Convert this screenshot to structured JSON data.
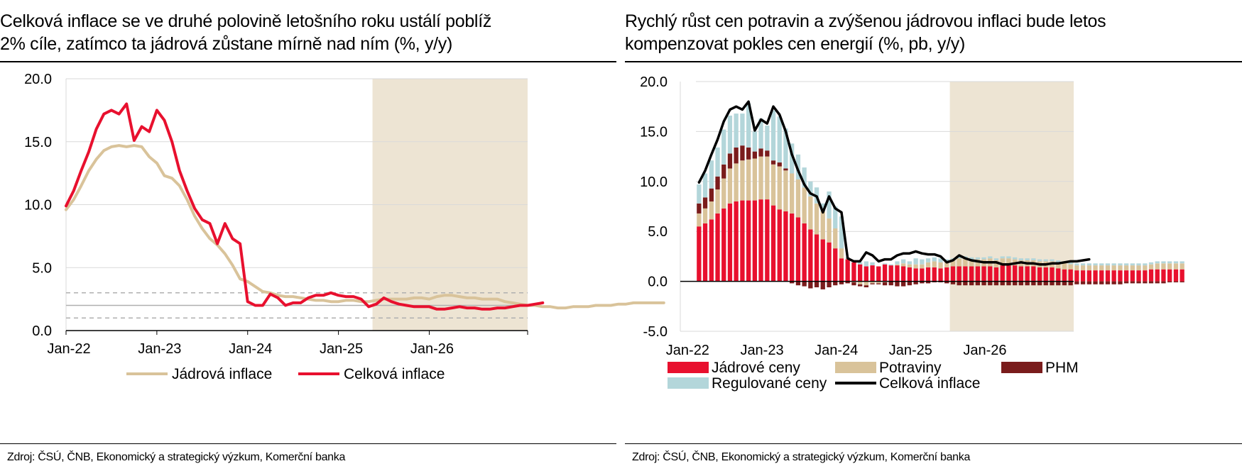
{
  "charts": [
    {
      "title_line1": "Celková inflace se ve druhé polovině letošního roku ustálí poblíž",
      "title_line2": "2% cíle, zatímco ta jádrová zůstane mírně nad ním (%, y/y)",
      "source": "Zdroj: ČSÚ, ČNB, Ekonomický a strategický výzkum, Komerční banka"
    },
    {
      "title_line1": "Rychlý růst cen potravin a zvýšenou jádrovou inflaci bude letos",
      "title_line2": "kompenzovat pokles cen energií (%, pb, y/y)",
      "source": "Zdroj: ČSÚ, ČNB, Ekonomický a strategický výzkum, Komerční banka"
    }
  ],
  "colors": {
    "core": "#d9c39a",
    "headline": "#e8102e",
    "core_prices": "#e8102e",
    "food": "#d9c39a",
    "fuels": "#7a1c1c",
    "regulated": "#b3d6da",
    "total_line": "#000000",
    "forecast_shade": "#ede4d3",
    "grid": "#d9d9d9",
    "band": "#b0b0b0"
  },
  "chart_data": [
    {
      "type": "line",
      "x_start": "2022-01",
      "x_ticks": [
        "Jan-22",
        "Jan-23",
        "Jan-24",
        "Jan-25",
        "Jan-26"
      ],
      "ylim": [
        0,
        20
      ],
      "y_ticks": [
        "0.0",
        "5.0",
        "10.0",
        "15.0",
        "20.0"
      ],
      "target_band": [
        1,
        2,
        3
      ],
      "forecast_from": "2025-06",
      "series": [
        {
          "name": "Jádrová inflace",
          "color_key": "core",
          "values": [
            9.6,
            10.4,
            11.5,
            12.7,
            13.6,
            14.3,
            14.6,
            14.7,
            14.6,
            14.7,
            14.6,
            13.8,
            13.3,
            12.3,
            12.1,
            11.5,
            10.4,
            9.1,
            8.1,
            7.3,
            6.8,
            6.1,
            5.2,
            4.1,
            3.9,
            3.5,
            3.1,
            3.0,
            2.8,
            2.7,
            2.7,
            2.6,
            2.5,
            2.4,
            2.4,
            2.3,
            2.3,
            2.4,
            2.4,
            2.3,
            2.3,
            2.4,
            2.5,
            2.5,
            2.5,
            2.5,
            2.6,
            2.6,
            2.5,
            2.7,
            2.8,
            2.8,
            2.7,
            2.6,
            2.6,
            2.5,
            2.5,
            2.5,
            2.3,
            2.2,
            2.1,
            2.0,
            2.0,
            1.9,
            1.9,
            1.8,
            1.8,
            1.9,
            1.9,
            1.9,
            2.0,
            2.0,
            2.0,
            2.1,
            2.1,
            2.2,
            2.2,
            2.2,
            2.2,
            2.2
          ]
        },
        {
          "name": "Celková inflace",
          "color_key": "headline",
          "values": [
            9.9,
            11.1,
            12.7,
            14.2,
            16.0,
            17.2,
            17.5,
            17.2,
            18.0,
            15.1,
            16.2,
            15.8,
            17.5,
            16.7,
            15.0,
            12.7,
            11.1,
            9.7,
            8.8,
            8.5,
            6.9,
            8.5,
            7.3,
            6.9,
            2.3,
            2.0,
            2.0,
            2.9,
            2.6,
            2.0,
            2.2,
            2.2,
            2.6,
            2.8,
            2.8,
            3.0,
            2.8,
            2.7,
            2.7,
            2.5,
            1.9,
            2.1,
            2.6,
            2.3,
            2.1,
            2.0,
            1.9,
            1.9,
            1.9,
            1.7,
            1.7,
            1.8,
            1.9,
            1.8,
            1.8,
            1.7,
            1.7,
            1.8,
            1.8,
            1.9,
            2.0,
            2.0,
            2.1,
            2.2
          ]
        }
      ]
    },
    {
      "type": "bar",
      "stacked": true,
      "x_start": "2022-01",
      "x_ticks": [
        "Jan-22",
        "Jan-23",
        "Jan-24",
        "Jan-25",
        "Jan-26"
      ],
      "ylim": [
        -5,
        20
      ],
      "y_ticks": [
        "-5.0",
        "0.0",
        "5.0",
        "10.0",
        "15.0",
        "20.0"
      ],
      "forecast_from": "2025-06",
      "series": [
        {
          "name": "Jádrové ceny",
          "color_key": "core_prices",
          "values": [
            5.5,
            5.8,
            6.2,
            6.8,
            7.3,
            7.8,
            8.0,
            8.1,
            8.1,
            8.1,
            8.2,
            8.2,
            7.6,
            7.2,
            7.0,
            6.8,
            6.4,
            5.8,
            5.2,
            4.7,
            4.2,
            3.9,
            3.3,
            2.3,
            2.2,
            1.9,
            1.7,
            1.5,
            1.6,
            1.5,
            1.7,
            1.6,
            1.6,
            1.5,
            1.4,
            1.3,
            1.3,
            1.4,
            1.4,
            1.3,
            1.4,
            1.5,
            1.5,
            1.5,
            1.5,
            1.5,
            1.5,
            1.5,
            1.4,
            1.6,
            1.6,
            1.6,
            1.5,
            1.5,
            1.5,
            1.4,
            1.4,
            1.4,
            1.3,
            1.2,
            1.2,
            1.1,
            1.1,
            1.1,
            1.1,
            1.1,
            1.1,
            1.1,
            1.1,
            1.1,
            1.1,
            1.1,
            1.1,
            1.2,
            1.2,
            1.2,
            1.2,
            1.2,
            1.2
          ]
        },
        {
          "name": "Potraviny",
          "color_key": "food",
          "values": [
            1.3,
            1.5,
            1.8,
            2.4,
            3.0,
            3.5,
            3.8,
            4.0,
            4.1,
            4.2,
            4.3,
            4.3,
            4.1,
            4.3,
            4.1,
            4.0,
            3.8,
            3.6,
            3.3,
            3.1,
            2.8,
            2.4,
            2.0,
            1.0,
            0.1,
            -0.1,
            -0.3,
            -0.4,
            -0.2,
            -0.2,
            -0.1,
            0.0,
            0.1,
            0.3,
            0.3,
            0.4,
            0.4,
            0.5,
            0.6,
            0.6,
            0.6,
            0.7,
            0.8,
            0.8,
            0.7,
            0.7,
            0.7,
            0.8,
            0.7,
            0.7,
            0.7,
            0.6,
            0.6,
            0.6,
            0.6,
            0.6,
            0.6,
            0.6,
            0.6,
            0.6,
            0.5,
            0.5,
            0.5,
            0.5,
            0.5,
            0.5,
            0.5,
            0.5,
            0.5,
            0.5,
            0.5,
            0.5,
            0.5,
            0.5,
            0.6,
            0.6,
            0.6,
            0.6,
            0.6
          ]
        },
        {
          "name": "PHM",
          "color_key": "fuels",
          "values": [
            1.0,
            1.1,
            1.3,
            1.3,
            1.4,
            1.5,
            1.6,
            1.5,
            1.2,
            0.7,
            0.8,
            0.6,
            0.4,
            0.4,
            0.2,
            -0.2,
            -0.4,
            -0.5,
            -0.7,
            -0.6,
            -0.8,
            -0.6,
            -0.4,
            -0.3,
            -0.2,
            -0.3,
            -0.2,
            -0.2,
            -0.1,
            -0.1,
            -0.3,
            -0.4,
            -0.5,
            -0.5,
            -0.4,
            -0.3,
            -0.2,
            -0.2,
            -0.1,
            -0.1,
            -0.2,
            -0.3,
            -0.4,
            -0.4,
            -0.4,
            -0.4,
            -0.4,
            -0.4,
            -0.4,
            -0.4,
            -0.4,
            -0.4,
            -0.4,
            -0.4,
            -0.4,
            -0.4,
            -0.4,
            -0.4,
            -0.4,
            -0.4,
            -0.4,
            -0.3,
            -0.3,
            -0.3,
            -0.3,
            -0.3,
            -0.3,
            -0.3,
            -0.3,
            -0.2,
            -0.2,
            -0.2,
            -0.2,
            -0.2,
            -0.2,
            -0.2,
            -0.1,
            -0.1,
            -0.1
          ]
        },
        {
          "name": "Regulované ceny",
          "color_key": "regulated",
          "values": [
            1.9,
            2.4,
            2.8,
            2.9,
            3.5,
            3.8,
            3.4,
            3.2,
            4.4,
            2.0,
            3.0,
            2.5,
            5.0,
            4.6,
            4.0,
            3.0,
            2.5,
            2.0,
            1.5,
            1.6,
            0.8,
            2.7,
            2.2,
            3.2,
            0.1,
            0.2,
            0.2,
            0.5,
            0.3,
            0.0,
            0.1,
            0.1,
            0.3,
            0.4,
            0.3,
            0.6,
            0.5,
            0.4,
            0.4,
            0.4,
            0.2,
            0.1,
            0.3,
            0.2,
            0.2,
            0.2,
            0.2,
            0.2,
            0.2,
            0.2,
            0.2,
            0.2,
            0.2,
            0.2,
            0.2,
            0.2,
            0.2,
            0.2,
            0.2,
            0.2,
            0.2,
            0.2,
            0.2,
            0.2,
            0.2,
            0.2,
            0.2,
            0.2,
            0.2,
            0.2,
            0.2,
            0.2,
            0.2,
            0.2,
            0.2,
            0.2,
            0.2,
            0.2,
            0.2
          ]
        },
        {
          "name": "Celková inflace",
          "kind": "line",
          "color_key": "total_line",
          "values": [
            9.9,
            11.1,
            12.7,
            14.2,
            16.0,
            17.2,
            17.5,
            17.2,
            18.0,
            15.1,
            16.2,
            15.8,
            17.5,
            16.7,
            15.0,
            12.7,
            11.1,
            9.7,
            8.8,
            8.5,
            6.9,
            8.5,
            7.3,
            6.9,
            2.3,
            2.0,
            2.0,
            2.9,
            2.6,
            2.0,
            2.2,
            2.2,
            2.6,
            2.8,
            2.8,
            3.0,
            2.8,
            2.7,
            2.7,
            2.5,
            1.9,
            2.1,
            2.6,
            2.3,
            2.1,
            2.0,
            1.9,
            1.9,
            1.9,
            1.7,
            1.7,
            1.8,
            1.9,
            1.8,
            1.8,
            1.7,
            1.7,
            1.8,
            1.8,
            1.9,
            2.0,
            2.0,
            2.1,
            2.2
          ]
        }
      ]
    }
  ]
}
